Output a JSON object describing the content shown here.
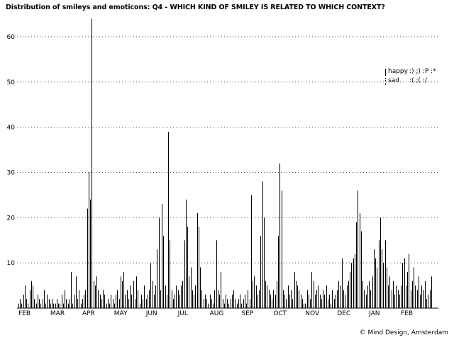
{
  "title": "Distribution of smileys and emoticons: Q4 - WHICH KIND OF SMILEY IS RELATED TO WHICH CONTEXT?",
  "credit": "© Mind Design, Amsterdam",
  "legend": [
    {
      "name": "happy",
      "symbols": ":) ;) :P :*",
      "style": "solid"
    },
    {
      "name": "sad",
      "symbols": ":( ;( :/",
      "style": "dotted"
    }
  ],
  "colors": {
    "bars": "#000000",
    "grid": "#555555",
    "background": "#ffffff"
  },
  "chart_data": {
    "type": "bar",
    "ylim": [
      0,
      65
    ],
    "yticks": [
      10,
      20,
      30,
      40,
      50,
      60
    ],
    "grid": "dotted horizontal",
    "legend_position": "top-right",
    "months": [
      "FEB",
      "MAR",
      "APR",
      "MAY",
      "JUN",
      "JUL",
      "AUG",
      "SEP",
      "OCT",
      "NOV",
      "DEC",
      "JAN",
      "FEB"
    ],
    "series": [
      {
        "name": "happy",
        "values_by_month": [
          [
            1,
            2,
            1,
            3,
            5,
            2,
            1,
            4,
            6,
            5,
            2,
            1,
            3,
            2,
            1,
            2,
            4,
            1,
            3,
            2
          ],
          [
            1,
            2,
            1,
            1,
            2,
            1,
            1,
            3,
            1,
            4,
            2,
            1,
            2,
            8,
            1,
            3,
            7,
            2,
            4,
            1
          ],
          [
            2,
            3,
            4,
            22,
            30,
            24,
            64,
            6,
            5,
            7,
            4,
            3,
            2,
            4,
            3,
            1,
            2,
            1,
            3,
            2
          ],
          [
            1,
            3,
            4,
            2,
            7,
            6,
            8,
            3,
            4,
            2,
            5,
            3,
            6,
            2,
            7,
            4,
            1,
            3,
            2,
            5
          ],
          [
            2,
            3,
            4,
            10,
            6,
            3,
            5,
            13,
            20,
            4,
            23,
            16,
            5,
            3,
            39,
            15,
            4,
            2,
            3,
            5
          ],
          [
            4,
            3,
            5,
            6,
            15,
            24,
            18,
            7,
            9,
            4,
            3,
            5,
            21,
            18,
            9,
            4,
            2,
            3,
            2,
            1
          ],
          [
            3,
            2,
            1,
            4,
            15,
            4,
            3,
            8,
            2,
            1,
            3,
            2,
            1,
            2,
            3,
            4,
            2,
            1,
            2,
            3
          ],
          [
            1,
            2,
            3,
            1,
            4,
            2,
            25,
            6,
            7,
            5,
            3,
            4,
            16,
            28,
            20,
            6,
            5,
            4,
            3,
            2
          ],
          [
            4,
            3,
            6,
            16,
            32,
            26,
            4,
            3,
            2,
            5,
            3,
            4,
            2,
            8,
            6,
            5,
            4,
            3,
            2,
            1
          ],
          [
            1,
            4,
            3,
            2,
            8,
            6,
            3,
            4,
            5,
            3,
            2,
            4,
            3,
            5,
            2,
            3,
            1,
            4,
            2,
            3
          ],
          [
            4,
            6,
            5,
            11,
            4,
            3,
            5,
            6,
            8,
            10,
            11,
            12,
            19,
            26,
            21,
            17,
            6,
            4,
            3,
            5
          ],
          [
            6,
            4,
            7,
            13,
            11,
            9,
            15,
            20,
            13,
            10,
            15,
            9,
            5,
            7,
            4,
            6,
            3,
            5,
            4,
            3
          ],
          [
            5,
            10,
            11,
            5,
            8,
            12,
            4,
            6,
            9,
            5,
            4,
            7,
            3,
            5,
            4,
            6,
            2,
            3,
            4,
            7
          ]
        ]
      }
    ]
  }
}
